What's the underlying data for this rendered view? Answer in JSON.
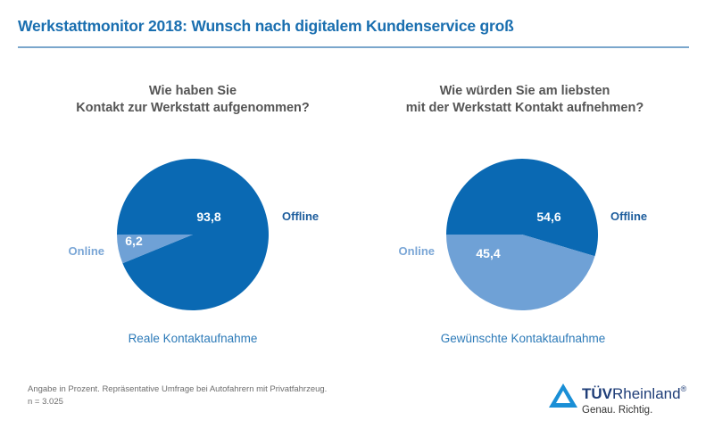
{
  "header": {
    "title": "Werkstattmonitor 2018: Wunsch nach digitalem Kundenservice groß"
  },
  "colors": {
    "offline": "#0a69b3",
    "online": "#6fa1d6",
    "title": "#1a6fb0",
    "label_offline": "#1c5c9c",
    "label_online": "#7aa6d6"
  },
  "chart_data": [
    {
      "type": "pie",
      "title": "Wie haben Sie\nKontakt zur Werkstatt aufgenommen?",
      "title_lines": [
        "Wie haben Sie",
        "Kontakt zur Werkstatt aufgenommen?"
      ],
      "caption": "Reale Kontaktaufnahme",
      "unit": "%",
      "slices": [
        {
          "label": "Offline",
          "value": 93.8,
          "value_label": "93,8"
        },
        {
          "label": "Online",
          "value": 6.2,
          "value_label": "6,2"
        }
      ]
    },
    {
      "type": "pie",
      "title": "Wie würden Sie am liebsten\nmit der Werkstatt Kontakt aufnehmen?",
      "title_lines": [
        "Wie würden Sie am liebsten",
        "mit der Werkstatt Kontakt aufnehmen?"
      ],
      "caption": "Gewünschte Kontaktaufnahme",
      "unit": "%",
      "slices": [
        {
          "label": "Offline",
          "value": 54.6,
          "value_label": "54,6"
        },
        {
          "label": "Online",
          "value": 45.4,
          "value_label": "45,4"
        }
      ]
    }
  ],
  "footnote": {
    "line1": "Angabe in Prozent. Repräsentative Umfrage bei Autofahrern mit Privatfahrzeug.",
    "line2": "n = 3.025"
  },
  "logo": {
    "brand_bold": "TÜV",
    "brand_regular": "Rheinland",
    "registered": "®",
    "tagline": "Genau. Richtig.",
    "icon": "tuv-triangle-icon"
  }
}
